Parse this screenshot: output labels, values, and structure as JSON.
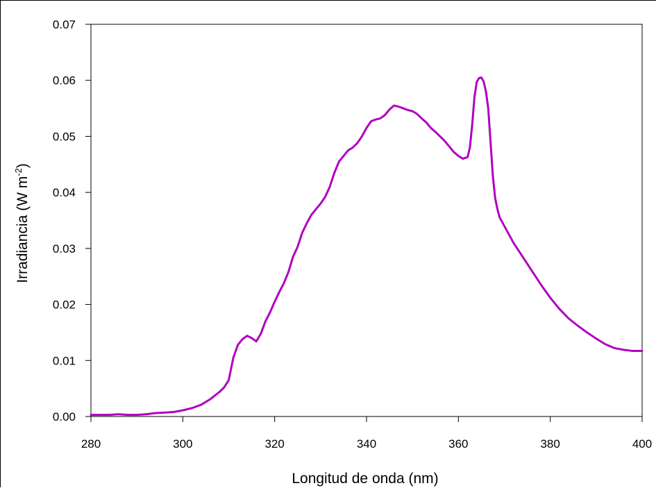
{
  "chart_data": {
    "type": "line",
    "title": "",
    "xlabel": "Longitud de onda (nm)",
    "ylabel_main": "Irradiancia (W m",
    "ylabel_sup": "-2",
    "ylabel_close": ")",
    "xlim": [
      280,
      400
    ],
    "ylim": [
      0,
      0.07
    ],
    "x_ticks": [
      280,
      300,
      320,
      340,
      360,
      380,
      400
    ],
    "x_tick_labels": [
      "280",
      "300",
      "320",
      "340",
      "360",
      "380",
      "400"
    ],
    "y_ticks": [
      0,
      0.01,
      0.02,
      0.03,
      0.04,
      0.05,
      0.06,
      0.07
    ],
    "y_tick_labels": [
      "0.00",
      "0.01",
      "0.02",
      "0.03",
      "0.04",
      "0.05",
      "0.06",
      "0.07"
    ],
    "grid": false,
    "legend": "none",
    "line_color": "#b000c0",
    "series": [
      {
        "x": [
          280,
          284,
          286,
          288,
          290,
          292,
          294,
          296,
          298,
          300,
          302,
          304,
          306,
          308,
          309,
          310,
          310.5,
          311,
          312,
          313,
          314,
          315,
          316,
          317,
          318,
          319,
          320,
          321,
          322,
          323,
          324,
          325,
          326,
          327,
          328,
          329,
          330,
          331,
          332,
          333,
          334,
          335,
          336,
          337,
          338,
          339,
          340,
          341,
          342,
          343,
          344,
          345,
          346,
          347,
          348,
          349,
          350,
          351,
          352,
          353,
          354,
          355,
          356,
          357,
          358,
          359,
          360,
          361,
          362,
          362.5,
          363,
          363.5,
          364,
          364.5,
          365,
          365.5,
          366,
          366.5,
          367,
          367.5,
          368,
          368.5,
          369,
          370,
          372,
          374,
          376,
          378,
          380,
          382,
          384,
          386,
          388,
          390,
          392,
          394,
          396,
          398,
          400
        ],
        "y": [
          0.0003,
          0.0003,
          0.0004,
          0.0003,
          0.0003,
          0.0004,
          0.0006,
          0.0007,
          0.0008,
          0.0011,
          0.0015,
          0.0021,
          0.0031,
          0.0044,
          0.0052,
          0.0065,
          0.0085,
          0.0105,
          0.0128,
          0.0138,
          0.0144,
          0.014,
          0.0134,
          0.0148,
          0.017,
          0.0186,
          0.0205,
          0.0222,
          0.0238,
          0.0258,
          0.0285,
          0.0303,
          0.0328,
          0.0345,
          0.036,
          0.037,
          0.038,
          0.0392,
          0.041,
          0.0435,
          0.0455,
          0.0465,
          0.0475,
          0.048,
          0.0488,
          0.05,
          0.0515,
          0.0527,
          0.053,
          0.0532,
          0.0538,
          0.0548,
          0.0555,
          0.0553,
          0.055,
          0.0547,
          0.0545,
          0.054,
          0.0532,
          0.0525,
          0.0515,
          0.0508,
          0.05,
          0.0492,
          0.0482,
          0.0472,
          0.0465,
          0.046,
          0.0463,
          0.048,
          0.052,
          0.057,
          0.0597,
          0.0604,
          0.0605,
          0.0598,
          0.058,
          0.055,
          0.049,
          0.043,
          0.039,
          0.037,
          0.0355,
          0.034,
          0.031,
          0.0285,
          0.026,
          0.0235,
          0.0212,
          0.0192,
          0.0175,
          0.0162,
          0.015,
          0.0139,
          0.0129,
          0.0122,
          0.0119,
          0.0117,
          0.0117
        ]
      }
    ]
  }
}
